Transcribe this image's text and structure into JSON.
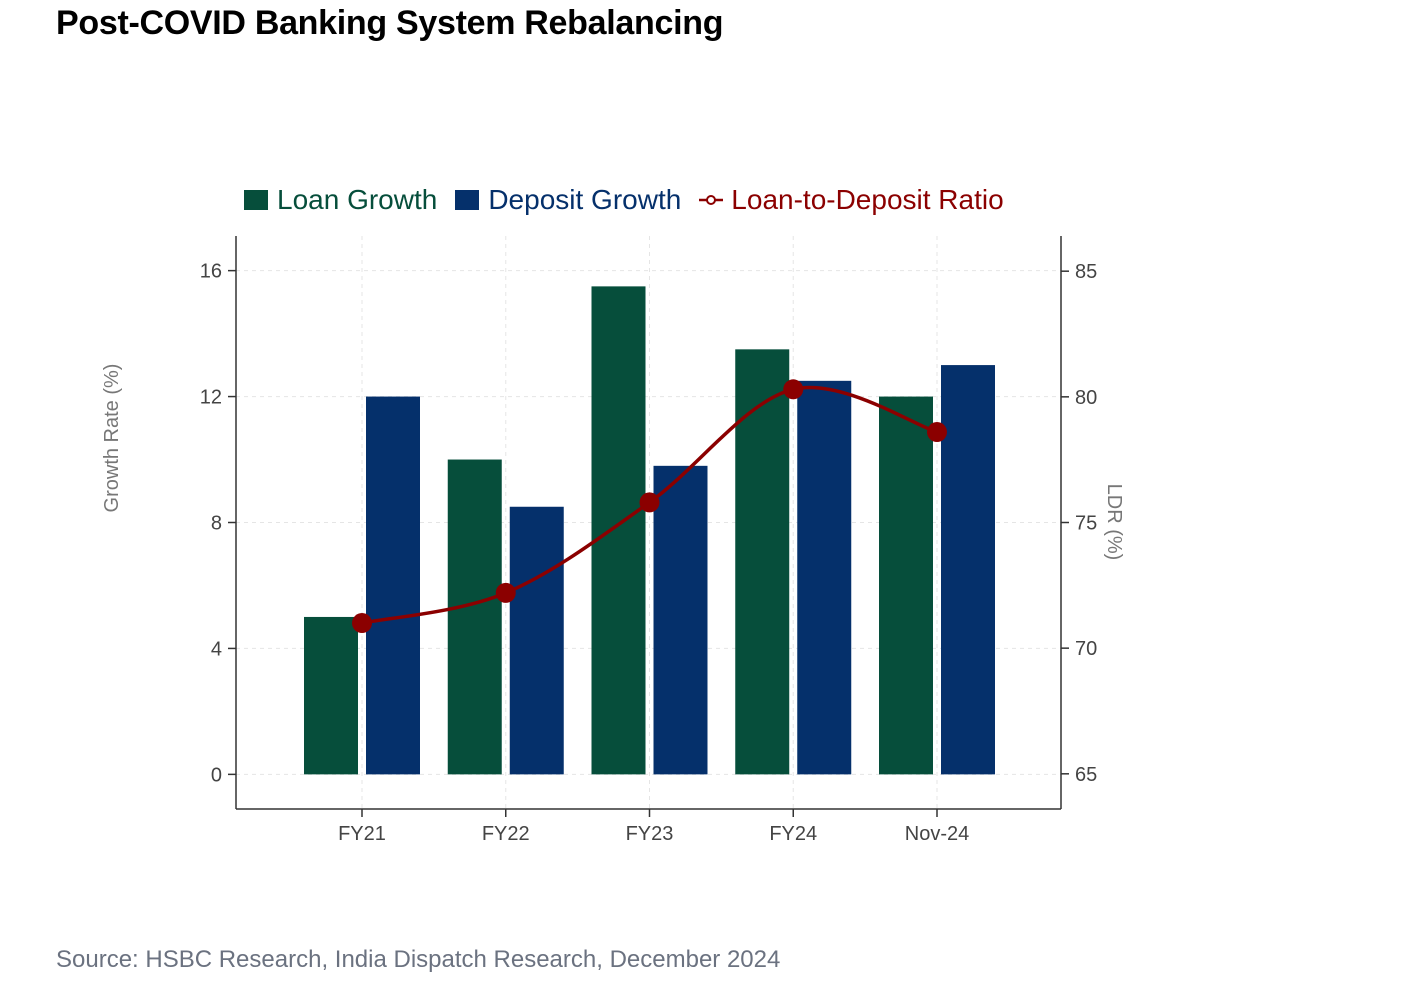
{
  "page": {
    "title": "Post-COVID Banking System Rebalancing",
    "source": "Source: HSBC Research, India Dispatch Research, December 2024"
  },
  "colors": {
    "loan": "#064e3b",
    "deposit": "#05306b",
    "ldr": "#8b0000",
    "axis": "#333333",
    "grid": "#e5e5e5"
  },
  "chart_data": {
    "type": "bar",
    "categories": [
      "FY21",
      "FY22",
      "FY23",
      "FY24",
      "Nov-24"
    ],
    "series": [
      {
        "name": "Loan Growth",
        "type": "bar",
        "axis": "left",
        "values": [
          5.0,
          10.0,
          15.5,
          13.5,
          12.0
        ]
      },
      {
        "name": "Deposit Growth",
        "type": "bar",
        "axis": "left",
        "values": [
          12.0,
          8.5,
          9.8,
          12.5,
          13.0
        ]
      },
      {
        "name": "Loan-to-Deposit Ratio",
        "type": "line",
        "axis": "right",
        "values": [
          71.0,
          72.2,
          75.8,
          80.3,
          78.6
        ]
      }
    ],
    "ylabel": "Growth Rate (%)",
    "y2label": "LDR (%)",
    "ylim": [
      -1.1,
      17.1
    ],
    "y2lim": [
      63.6,
      86.4
    ],
    "yticks": [
      0,
      4,
      8,
      12,
      16
    ],
    "y2ticks": [
      65,
      70,
      75,
      80,
      85
    ],
    "grid": true,
    "legend_position": "top-left"
  }
}
